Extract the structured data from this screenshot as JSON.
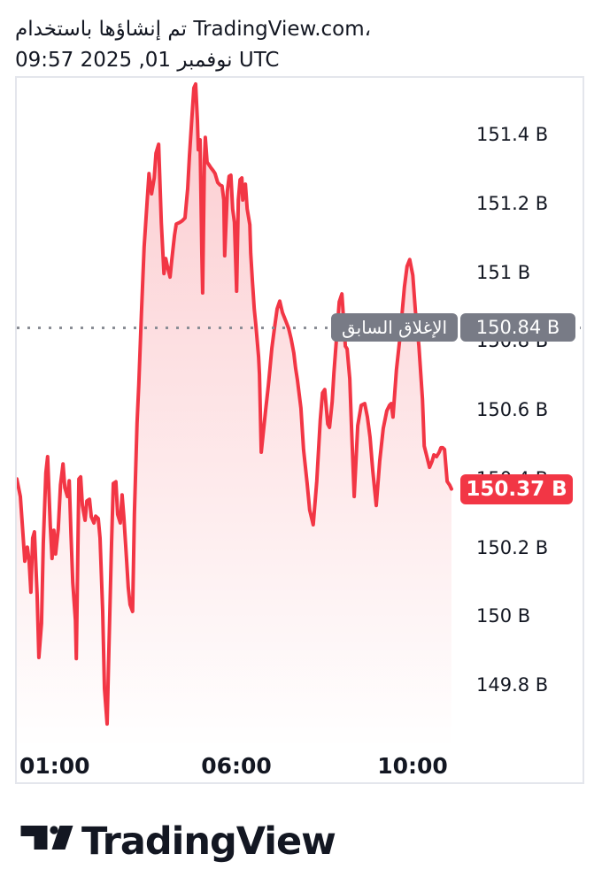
{
  "header": {
    "attribution_line": "تم إنشاؤها باستخدام TradingView.com،",
    "datetime_line": "09:57 2025 ,01 نوفمبر UTC"
  },
  "chart_data": {
    "type": "area",
    "title": "",
    "xlabel": "",
    "ylabel": "",
    "unit": "B",
    "grid": false,
    "x_axis": {
      "tick_labels": [
        "01:00",
        "06:00",
        "10:00"
      ],
      "tick_hours": [
        1,
        6,
        10
      ],
      "xlim_hours": [
        1.01,
        10.88
      ]
    },
    "y_axis": {
      "tick_labels": [
        "151.4 B",
        "151.2 B",
        "151 B",
        "150.8 B",
        "150.6 B",
        "150.4 B",
        "150.2 B",
        "150 B",
        "149.8 B"
      ],
      "tick_values": [
        151.4,
        151.2,
        151.0,
        150.8,
        150.6,
        150.4,
        150.2,
        150.0,
        149.8
      ],
      "ylim": [
        149.615,
        151.565
      ],
      "side": "right"
    },
    "previous_close": {
      "label": "الإغلاق السابق",
      "value_label": "150.84 B",
      "value": 150.84,
      "line_style": "dotted"
    },
    "last_price": {
      "value_label": "150.37 B",
      "value": 150.37
    },
    "colors": {
      "line": "#f23645",
      "fill_top": "rgba(242,54,69,0.26)",
      "fill_bottom": "rgba(242,54,69,0)",
      "previous_close_badge": "#787b86",
      "last_price_badge": "#f23645",
      "text": "#131722",
      "border": "#e4e6ec",
      "dotted_line": "#8a8d95"
    },
    "series": [
      {
        "name": "price",
        "points": [
          [
            1.01,
            150.399
          ],
          [
            1.09,
            150.348
          ],
          [
            1.15,
            150.237
          ],
          [
            1.19,
            150.16
          ],
          [
            1.25,
            150.201
          ],
          [
            1.29,
            150.16
          ],
          [
            1.33,
            150.07
          ],
          [
            1.37,
            150.227
          ],
          [
            1.41,
            150.245
          ],
          [
            1.47,
            150.065
          ],
          [
            1.51,
            149.88
          ],
          [
            1.57,
            149.98
          ],
          [
            1.61,
            150.212
          ],
          [
            1.67,
            150.417
          ],
          [
            1.71,
            150.464
          ],
          [
            1.77,
            150.263
          ],
          [
            1.81,
            150.168
          ],
          [
            1.85,
            150.25
          ],
          [
            1.89,
            150.181
          ],
          [
            1.95,
            150.253
          ],
          [
            2.0,
            150.381
          ],
          [
            2.06,
            150.443
          ],
          [
            2.1,
            150.374
          ],
          [
            2.16,
            150.348
          ],
          [
            2.2,
            150.394
          ],
          [
            2.24,
            150.237
          ],
          [
            2.28,
            150.098
          ],
          [
            2.34,
            149.988
          ],
          [
            2.36,
            149.877
          ],
          [
            2.42,
            150.399
          ],
          [
            2.46,
            150.405
          ],
          [
            2.5,
            150.322
          ],
          [
            2.56,
            150.279
          ],
          [
            2.6,
            150.335
          ],
          [
            2.66,
            150.34
          ],
          [
            2.7,
            150.289
          ],
          [
            2.76,
            150.271
          ],
          [
            2.8,
            150.291
          ],
          [
            2.86,
            150.284
          ],
          [
            2.9,
            150.227
          ],
          [
            2.96,
            150.014
          ],
          [
            3.0,
            149.79
          ],
          [
            3.06,
            149.687
          ],
          [
            3.1,
            149.903
          ],
          [
            3.16,
            150.212
          ],
          [
            3.2,
            150.386
          ],
          [
            3.26,
            150.391
          ],
          [
            3.3,
            150.296
          ],
          [
            3.36,
            150.271
          ],
          [
            3.4,
            150.353
          ],
          [
            3.44,
            150.289
          ],
          [
            3.5,
            150.168
          ],
          [
            3.54,
            150.083
          ],
          [
            3.58,
            150.034
          ],
          [
            3.64,
            150.014
          ],
          [
            3.68,
            150.296
          ],
          [
            3.74,
            150.561
          ],
          [
            3.78,
            150.675
          ],
          [
            3.84,
            150.883
          ],
          [
            3.9,
            151.073
          ],
          [
            3.97,
            151.21
          ],
          [
            4.01,
            151.287
          ],
          [
            4.07,
            151.228
          ],
          [
            4.13,
            151.274
          ],
          [
            4.17,
            151.346
          ],
          [
            4.23,
            151.372
          ],
          [
            4.29,
            151.145
          ],
          [
            4.35,
            150.996
          ],
          [
            4.39,
            151.04
          ],
          [
            4.43,
            151.017
          ],
          [
            4.49,
            150.986
          ],
          [
            4.53,
            151.037
          ],
          [
            4.59,
            151.107
          ],
          [
            4.63,
            151.14
          ],
          [
            4.71,
            151.145
          ],
          [
            4.77,
            151.15
          ],
          [
            4.83,
            151.158
          ],
          [
            4.89,
            151.243
          ],
          [
            4.93,
            151.338
          ],
          [
            4.99,
            151.459
          ],
          [
            5.03,
            151.536
          ],
          [
            5.07,
            151.547
          ],
          [
            5.11,
            151.441
          ],
          [
            5.13,
            151.356
          ],
          [
            5.17,
            151.385
          ],
          [
            5.21,
            151.055
          ],
          [
            5.23,
            150.94
          ],
          [
            5.27,
            151.325
          ],
          [
            5.29,
            151.392
          ],
          [
            5.33,
            151.32
          ],
          [
            5.37,
            151.313
          ],
          [
            5.41,
            151.305
          ],
          [
            5.47,
            151.295
          ],
          [
            5.51,
            151.287
          ],
          [
            5.57,
            151.261
          ],
          [
            5.63,
            151.253
          ],
          [
            5.67,
            151.251
          ],
          [
            5.71,
            151.21
          ],
          [
            5.73,
            151.048
          ],
          [
            5.79,
            151.235
          ],
          [
            5.83,
            151.279
          ],
          [
            5.87,
            151.282
          ],
          [
            5.91,
            151.184
          ],
          [
            5.95,
            151.145
          ],
          [
            6.0,
            150.945
          ],
          [
            6.04,
            151.21
          ],
          [
            6.08,
            151.269
          ],
          [
            6.12,
            151.274
          ],
          [
            6.14,
            151.21
          ],
          [
            6.2,
            151.256
          ],
          [
            6.24,
            151.184
          ],
          [
            6.3,
            151.138
          ],
          [
            6.32,
            151.055
          ],
          [
            6.36,
            150.97
          ],
          [
            6.4,
            150.893
          ],
          [
            6.44,
            150.844
          ],
          [
            6.5,
            150.754
          ],
          [
            6.52,
            150.703
          ],
          [
            6.56,
            150.477
          ],
          [
            6.66,
            150.6
          ],
          [
            6.72,
            150.67
          ],
          [
            6.8,
            150.78
          ],
          [
            6.86,
            150.837
          ],
          [
            6.92,
            150.893
          ],
          [
            6.98,
            150.916
          ],
          [
            7.04,
            150.883
          ],
          [
            7.12,
            150.857
          ],
          [
            7.18,
            150.837
          ],
          [
            7.24,
            150.806
          ],
          [
            7.3,
            150.765
          ],
          [
            7.34,
            150.721
          ],
          [
            7.38,
            150.688
          ],
          [
            7.46,
            150.605
          ],
          [
            7.52,
            150.484
          ],
          [
            7.6,
            150.387
          ],
          [
            7.66,
            150.309
          ],
          [
            7.74,
            150.266
          ],
          [
            7.82,
            150.392
          ],
          [
            7.9,
            150.572
          ],
          [
            7.95,
            150.649
          ],
          [
            8.0,
            150.659
          ],
          [
            8.07,
            150.559
          ],
          [
            8.11,
            150.549
          ],
          [
            8.17,
            150.623
          ],
          [
            8.21,
            150.708
          ],
          [
            8.27,
            150.811
          ],
          [
            8.33,
            150.914
          ],
          [
            8.39,
            150.937
          ],
          [
            8.47,
            150.785
          ],
          [
            8.51,
            150.777
          ],
          [
            8.57,
            150.69
          ],
          [
            8.61,
            150.546
          ],
          [
            8.67,
            150.348
          ],
          [
            8.75,
            150.554
          ],
          [
            8.83,
            150.613
          ],
          [
            8.91,
            150.618
          ],
          [
            8.97,
            150.579
          ],
          [
            9.03,
            150.52
          ],
          [
            9.09,
            150.425
          ],
          [
            9.17,
            150.322
          ],
          [
            9.25,
            150.451
          ],
          [
            9.33,
            150.546
          ],
          [
            9.41,
            150.597
          ],
          [
            9.47,
            150.613
          ],
          [
            9.51,
            150.618
          ],
          [
            9.55,
            150.579
          ],
          [
            9.63,
            150.716
          ],
          [
            9.71,
            150.811
          ],
          [
            9.81,
            150.957
          ],
          [
            9.87,
            151.017
          ],
          [
            9.93,
            151.037
          ],
          [
            10.0,
            150.991
          ],
          [
            10.06,
            150.888
          ],
          [
            10.14,
            150.785
          ],
          [
            10.22,
            150.631
          ],
          [
            10.26,
            150.495
          ],
          [
            10.32,
            150.464
          ],
          [
            10.38,
            150.433
          ],
          [
            10.44,
            150.451
          ],
          [
            10.48,
            150.469
          ],
          [
            10.54,
            150.464
          ],
          [
            10.6,
            150.477
          ],
          [
            10.64,
            150.49
          ],
          [
            10.68,
            150.49
          ],
          [
            10.72,
            150.485
          ],
          [
            10.78,
            150.392
          ],
          [
            10.84,
            150.381
          ],
          [
            10.88,
            150.37
          ]
        ]
      }
    ]
  },
  "footer": {
    "brand": "TradingView"
  }
}
